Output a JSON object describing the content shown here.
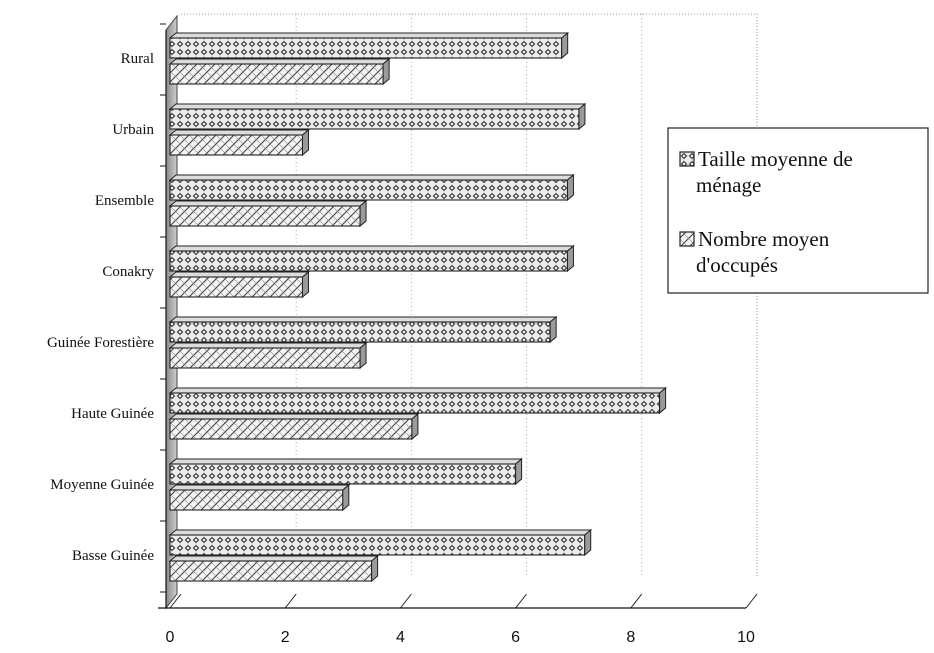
{
  "chart_data": {
    "type": "bar",
    "orientation": "horizontal",
    "categories": [
      "Basse Guinée",
      "Moyenne Guinée",
      "Haute Guinée",
      "Guinée Forestière",
      "Conakry",
      "Ensemble",
      "Urbain",
      "Rural"
    ],
    "series": [
      {
        "name": "Taille moyenne de ménage",
        "values": [
          7.2,
          6.0,
          8.5,
          6.6,
          6.9,
          6.9,
          7.1,
          6.8
        ]
      },
      {
        "name": "Nombre moyen d'occupés",
        "values": [
          3.5,
          3.0,
          4.2,
          3.3,
          2.3,
          3.3,
          2.3,
          3.7
        ]
      }
    ],
    "xlim": [
      0,
      10
    ],
    "xticks": [
      "0",
      "2",
      "4",
      "6",
      "8",
      "10"
    ],
    "title": "",
    "xlabel": "",
    "ylabel": "",
    "grid": true,
    "legend_position": "right",
    "legend_lines": [
      [
        "Taille moyenne de",
        "ménage"
      ],
      [
        "Nombre moyen",
        "d'occupés"
      ]
    ]
  }
}
